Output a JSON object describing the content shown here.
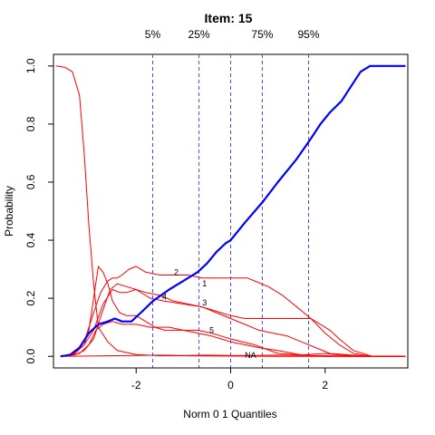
{
  "chart_data": {
    "type": "line",
    "title": "Item:  15",
    "xlabel": "Norm 0 1 Quantiles",
    "ylabel": "Probability",
    "xlim": [
      -3.75,
      3.75
    ],
    "ylim": [
      -0.04,
      1.04
    ],
    "xticks": [
      -2,
      0,
      2
    ],
    "yticks": [
      0.0,
      0.2,
      0.4,
      0.6,
      0.8,
      1.0
    ],
    "ytick_labels": [
      "0.0",
      "0.2",
      "0.4",
      "0.6",
      "0.8",
      "1.0"
    ],
    "grid": false,
    "quantile_lines": {
      "labels": [
        "5%",
        "25%",
        "75%",
        "95%"
      ],
      "x": [
        -1.65,
        -0.67,
        0.67,
        1.65
      ],
      "extra_x": [
        0
      ],
      "color": "#4b4bdc",
      "style": "dashed"
    },
    "series": [
      {
        "name": "0",
        "color": "#ff0000",
        "label_at": null,
        "points": [
          [
            -3.7,
            1.0
          ],
          [
            -3.5,
            0.995
          ],
          [
            -3.35,
            0.98
          ],
          [
            -3.2,
            0.9
          ],
          [
            -3.1,
            0.7
          ],
          [
            -3.0,
            0.45
          ],
          [
            -2.9,
            0.25
          ],
          [
            -2.8,
            0.1
          ],
          [
            -2.6,
            0.05
          ],
          [
            -2.4,
            0.02
          ],
          [
            -2.0,
            0.006
          ],
          [
            -1.5,
            0.002
          ],
          [
            -1.0,
            0.002
          ],
          [
            0.0,
            0.001
          ],
          [
            1.0,
            0.0
          ],
          [
            3.7,
            0.0
          ]
        ]
      },
      {
        "name": "1",
        "color": "#ff0000",
        "label_at": [
          -0.6,
          0.25
        ],
        "points": [
          [
            -3.6,
            0.0
          ],
          [
            -3.3,
            0.01
          ],
          [
            -3.1,
            0.05
          ],
          [
            -2.9,
            0.15
          ],
          [
            -2.75,
            0.22
          ],
          [
            -2.6,
            0.26
          ],
          [
            -2.5,
            0.27
          ],
          [
            -2.4,
            0.27
          ],
          [
            -2.3,
            0.28
          ],
          [
            -2.15,
            0.3
          ],
          [
            -2.0,
            0.31
          ],
          [
            -1.8,
            0.29
          ],
          [
            -1.5,
            0.28
          ],
          [
            -1.2,
            0.28
          ],
          [
            -0.9,
            0.28
          ],
          [
            -0.6,
            0.27
          ],
          [
            -0.3,
            0.27
          ],
          [
            0.0,
            0.27
          ],
          [
            0.35,
            0.27
          ],
          [
            0.5,
            0.26
          ],
          [
            0.8,
            0.24
          ],
          [
            1.1,
            0.21
          ],
          [
            1.4,
            0.17
          ],
          [
            1.7,
            0.13
          ],
          [
            2.0,
            0.08
          ],
          [
            2.3,
            0.04
          ],
          [
            2.6,
            0.01
          ],
          [
            3.0,
            0.0
          ],
          [
            3.7,
            0.0
          ]
        ]
      },
      {
        "name": "2",
        "color": "#ff0000",
        "label_at": [
          -1.2,
          0.29
        ],
        "points": [
          [
            -3.6,
            0.0
          ],
          [
            -3.3,
            0.01
          ],
          [
            -3.1,
            0.04
          ],
          [
            -3.0,
            0.09
          ],
          [
            -2.9,
            0.2
          ],
          [
            -2.8,
            0.31
          ],
          [
            -2.7,
            0.29
          ],
          [
            -2.6,
            0.25
          ],
          [
            -2.5,
            0.19
          ],
          [
            -2.35,
            0.15
          ],
          [
            -2.2,
            0.14
          ],
          [
            -2.0,
            0.14
          ],
          [
            -1.8,
            0.12
          ],
          [
            -1.6,
            0.1
          ],
          [
            -1.4,
            0.09
          ],
          [
            -1.0,
            0.09
          ],
          [
            -0.7,
            0.09
          ],
          [
            -0.4,
            0.08
          ],
          [
            -0.2,
            0.07
          ],
          [
            0.0,
            0.06
          ],
          [
            0.5,
            0.04
          ],
          [
            1.0,
            0.01
          ],
          [
            1.5,
            0.005
          ],
          [
            2.0,
            0.01
          ],
          [
            2.3,
            0.005
          ],
          [
            2.8,
            0.0
          ],
          [
            3.7,
            0.0
          ]
        ]
      },
      {
        "name": "3",
        "color": "#ff0000",
        "label_at": [
          -0.6,
          0.185
        ],
        "points": [
          [
            -3.6,
            0.0
          ],
          [
            -3.3,
            0.01
          ],
          [
            -3.1,
            0.04
          ],
          [
            -2.9,
            0.09
          ],
          [
            -2.7,
            0.18
          ],
          [
            -2.5,
            0.23
          ],
          [
            -2.35,
            0.22
          ],
          [
            -2.2,
            0.22
          ],
          [
            -2.0,
            0.23
          ],
          [
            -1.8,
            0.22
          ],
          [
            -1.5,
            0.21
          ],
          [
            -1.2,
            0.19
          ],
          [
            -0.9,
            0.18
          ],
          [
            -0.6,
            0.17
          ],
          [
            -0.3,
            0.15
          ],
          [
            0.0,
            0.13
          ],
          [
            0.3,
            0.11
          ],
          [
            0.6,
            0.09
          ],
          [
            0.9,
            0.08
          ],
          [
            1.2,
            0.07
          ],
          [
            1.5,
            0.05
          ],
          [
            1.8,
            0.03
          ],
          [
            2.1,
            0.01
          ],
          [
            2.5,
            0.005
          ],
          [
            3.0,
            0.0
          ],
          [
            3.7,
            0.0
          ]
        ]
      },
      {
        "name": "4",
        "color": "#ff0000",
        "label_at": [
          -1.45,
          0.205
        ],
        "points": [
          [
            -3.6,
            0.0
          ],
          [
            -3.3,
            0.005
          ],
          [
            -3.1,
            0.02
          ],
          [
            -2.9,
            0.06
          ],
          [
            -2.7,
            0.16
          ],
          [
            -2.55,
            0.23
          ],
          [
            -2.4,
            0.25
          ],
          [
            -2.2,
            0.24
          ],
          [
            -2.0,
            0.23
          ],
          [
            -1.7,
            0.2
          ],
          [
            -1.4,
            0.19
          ],
          [
            -1.0,
            0.18
          ],
          [
            -0.6,
            0.17
          ],
          [
            -0.4,
            0.16
          ],
          [
            -0.2,
            0.15
          ],
          [
            0.0,
            0.14
          ],
          [
            0.3,
            0.13
          ],
          [
            0.6,
            0.13
          ],
          [
            1.0,
            0.13
          ],
          [
            1.3,
            0.13
          ],
          [
            1.7,
            0.13
          ],
          [
            1.9,
            0.11
          ],
          [
            2.1,
            0.09
          ],
          [
            2.3,
            0.06
          ],
          [
            2.6,
            0.02
          ],
          [
            3.0,
            0.0
          ],
          [
            3.7,
            0.0
          ]
        ]
      },
      {
        "name": "5",
        "color": "#ff0000",
        "label_at": [
          -0.45,
          0.09
        ],
        "points": [
          [
            -3.6,
            0.0
          ],
          [
            -3.2,
            0.01
          ],
          [
            -3.0,
            0.04
          ],
          [
            -2.85,
            0.09
          ],
          [
            -2.7,
            0.11
          ],
          [
            -2.5,
            0.12
          ],
          [
            -2.3,
            0.11
          ],
          [
            -2.0,
            0.11
          ],
          [
            -1.7,
            0.1
          ],
          [
            -1.3,
            0.1
          ],
          [
            -1.0,
            0.09
          ],
          [
            -0.7,
            0.08
          ],
          [
            -0.4,
            0.07
          ],
          [
            -0.2,
            0.06
          ],
          [
            0.0,
            0.05
          ],
          [
            0.3,
            0.04
          ],
          [
            0.6,
            0.03
          ],
          [
            1.0,
            0.02
          ],
          [
            1.5,
            0.005
          ],
          [
            2.0,
            0.0
          ],
          [
            3.7,
            0.0
          ]
        ]
      },
      {
        "name": "NA",
        "color": "#ff0000",
        "label_at": [
          0.3,
          0.003
        ],
        "points": [
          [
            -3.6,
            0.0
          ],
          [
            -3.0,
            0.001
          ],
          [
            -2.5,
            0.002
          ],
          [
            -2.0,
            0.003
          ],
          [
            -1.5,
            0.004
          ],
          [
            -1.0,
            0.003
          ],
          [
            -0.5,
            0.004
          ],
          [
            0.0,
            0.003
          ],
          [
            0.5,
            0.003
          ],
          [
            1.0,
            0.004
          ],
          [
            1.5,
            0.003
          ],
          [
            2.0,
            0.002
          ],
          [
            2.5,
            0.001
          ],
          [
            3.0,
            0.0
          ],
          [
            3.7,
            0.0
          ]
        ]
      },
      {
        "name": "expected",
        "color": "#0000ff",
        "thick": true,
        "label_at": null,
        "points": [
          [
            -3.6,
            0.0
          ],
          [
            -3.4,
            0.005
          ],
          [
            -3.2,
            0.03
          ],
          [
            -3.0,
            0.08
          ],
          [
            -2.8,
            0.11
          ],
          [
            -2.6,
            0.12
          ],
          [
            -2.45,
            0.13
          ],
          [
            -2.3,
            0.12
          ],
          [
            -2.1,
            0.12
          ],
          [
            -1.9,
            0.15
          ],
          [
            -1.65,
            0.19
          ],
          [
            -1.3,
            0.23
          ],
          [
            -1.0,
            0.26
          ],
          [
            -0.7,
            0.29
          ],
          [
            -0.5,
            0.32
          ],
          [
            -0.3,
            0.36
          ],
          [
            -0.1,
            0.39
          ],
          [
            0.0,
            0.4
          ],
          [
            0.3,
            0.46
          ],
          [
            0.67,
            0.53
          ],
          [
            1.0,
            0.6
          ],
          [
            1.4,
            0.68
          ],
          [
            1.7,
            0.75
          ],
          [
            1.9,
            0.8
          ],
          [
            2.1,
            0.84
          ],
          [
            2.35,
            0.88
          ],
          [
            2.55,
            0.93
          ],
          [
            2.75,
            0.98
          ],
          [
            2.95,
            1.0
          ],
          [
            3.3,
            1.0
          ],
          [
            3.7,
            1.0
          ]
        ]
      }
    ]
  }
}
